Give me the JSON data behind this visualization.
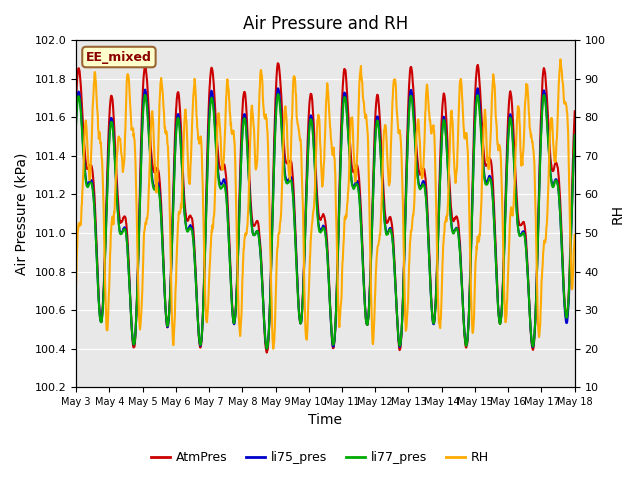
{
  "title": "Air Pressure and RH",
  "xlabel": "Time",
  "ylabel_left": "Air Pressure (kPa)",
  "ylabel_right": "RH",
  "annotation": "EE_mixed",
  "ylim_left": [
    100.2,
    102.0
  ],
  "ylim_right": [
    10,
    100
  ],
  "yticks_left": [
    100.2,
    100.4,
    100.6,
    100.8,
    101.0,
    101.2,
    101.4,
    101.6,
    101.8,
    102.0
  ],
  "yticks_right": [
    10,
    20,
    30,
    40,
    50,
    60,
    70,
    80,
    90,
    100
  ],
  "xtick_labels": [
    "May 3",
    "May 4",
    "May 5",
    "May 6",
    "May 7",
    "May 8",
    "May 9",
    "May 10",
    "May 11",
    "May 12",
    "May 13",
    "May 14",
    "May 15",
    "May 16",
    "May 17",
    "May 18"
  ],
  "colors": {
    "AtmPres": "#cc0000",
    "li75_pres": "#0000cc",
    "li77_pres": "#00aa00",
    "RH": "#ffaa00"
  },
  "linewidths": {
    "AtmPres": 1.5,
    "li75_pres": 1.5,
    "li77_pres": 1.5,
    "RH": 1.5
  },
  "background_color": "#ffffff",
  "plot_bg_color": "#e8e8e8",
  "grid_color": "#ffffff",
  "annotation_bg": "#ffffcc",
  "annotation_border": "#996633"
}
